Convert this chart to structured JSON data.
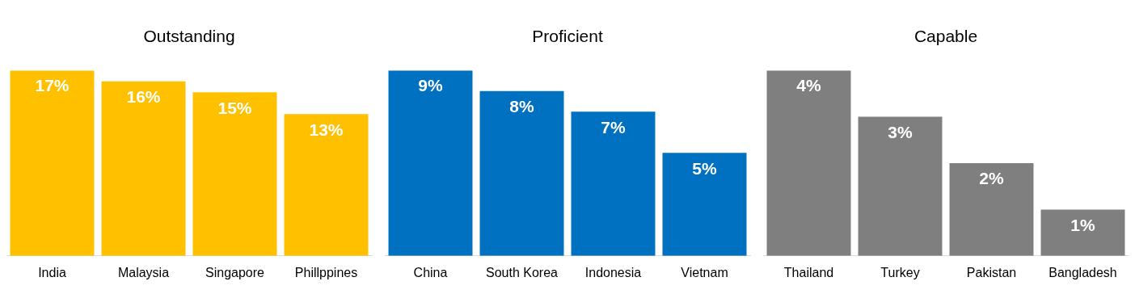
{
  "chart_data": [
    {
      "type": "bar",
      "title": "Outstanding",
      "categories": [
        "India",
        "Malaysia",
        "Singapore",
        "Phillppines"
      ],
      "values": [
        17,
        16,
        15,
        13
      ],
      "color": "#ffc000",
      "value_labels": [
        "17%",
        "16%",
        "15%",
        "13%"
      ],
      "tick_labels": "x"
    },
    {
      "type": "bar",
      "title": "Proficient",
      "categories": [
        "China",
        "South Korea",
        "Indonesia",
        "Vietnam"
      ],
      "values": [
        9,
        8,
        7,
        5
      ],
      "color": "#0070c0",
      "value_labels": [
        "9%",
        "8%",
        "7%",
        "5%"
      ],
      "tick_labels": "x"
    },
    {
      "type": "bar",
      "title": "Capable",
      "categories": [
        "Thailand",
        "Turkey",
        "Pakistan",
        "Bangladesh"
      ],
      "values": [
        4,
        3,
        2,
        1
      ],
      "color": "#7f7f7f",
      "value_labels": [
        "4%",
        "3%",
        "2%",
        "1%"
      ],
      "tick_labels": "x"
    }
  ]
}
